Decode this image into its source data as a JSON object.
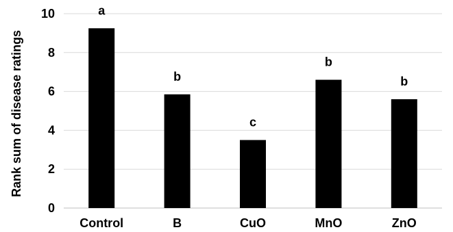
{
  "chart_data": {
    "type": "bar",
    "title": "",
    "xlabel": "",
    "ylabel": "Rank sum of disease ratings",
    "categories": [
      "Control",
      "B",
      "CuO",
      "MnO",
      "ZnO"
    ],
    "values": [
      9.25,
      5.85,
      3.5,
      6.6,
      5.6
    ],
    "significance_letters": [
      "a",
      "b",
      "c",
      "b",
      "b"
    ],
    "ylim": [
      0,
      10
    ],
    "yticks": [
      0,
      2,
      4,
      6,
      8,
      10
    ],
    "grid": true,
    "legend": "none",
    "bar_color": "#000000",
    "grid_color": "#d9d9d9"
  }
}
